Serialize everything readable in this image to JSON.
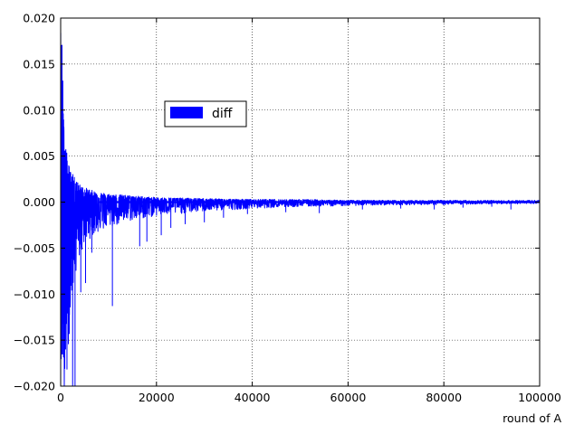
{
  "chart_data": {
    "type": "line",
    "title": "",
    "xlabel": "round of A",
    "ylabel": "",
    "xlim": [
      0,
      100000
    ],
    "ylim": [
      -0.02,
      0.02
    ],
    "grid": true,
    "legend_position": "upper-left",
    "x_ticks": [
      "0",
      "20000",
      "40000",
      "60000",
      "80000",
      "100000"
    ],
    "y_ticks": [
      "0.020",
      "0.015",
      "0.010",
      "0.005",
      "0.000",
      "−0.005",
      "−0.010",
      "−0.015",
      "−0.020"
    ],
    "x_tick_values": [
      0,
      20000,
      40000,
      60000,
      80000,
      100000
    ],
    "y_tick_values": [
      0.02,
      0.015,
      0.01,
      0.005,
      0.0,
      -0.005,
      -0.01,
      -0.015,
      -0.02
    ],
    "series": [
      {
        "name": "diff",
        "color": "#0000ff",
        "envelope_x": [
          0,
          300,
          600,
          1000,
          1500,
          2000,
          3000,
          4000,
          5000,
          7000,
          10000,
          15000,
          20000,
          30000,
          40000,
          50000,
          60000,
          70000,
          80000,
          90000,
          100000
        ],
        "envelope_upper": [
          0.02,
          0.0175,
          0.0095,
          0.0065,
          0.0045,
          0.0035,
          0.0026,
          0.0019,
          0.0016,
          0.0012,
          0.0009,
          0.0007,
          0.0005,
          0.0004,
          0.0003,
          0.0003,
          0.0002,
          0.0002,
          0.0002,
          0.0002,
          0.0002
        ],
        "envelope_lower": [
          -0.02,
          -0.02,
          -0.02,
          -0.02,
          -0.018,
          -0.012,
          -0.008,
          -0.006,
          -0.0045,
          -0.0035,
          -0.0028,
          -0.002,
          -0.0015,
          -0.001,
          -0.0007,
          -0.0005,
          -0.0004,
          -0.0003,
          -0.0003,
          -0.0002,
          -0.0002
        ],
        "spikes": [
          {
            "x": 2500,
            "y": -0.02
          },
          {
            "x": 3000,
            "y": -0.02
          },
          {
            "x": 4200,
            "y": -0.0098
          },
          {
            "x": 5200,
            "y": -0.0088
          },
          {
            "x": 6500,
            "y": -0.0055
          },
          {
            "x": 10800,
            "y": -0.0113
          },
          {
            "x": 16500,
            "y": -0.0048
          },
          {
            "x": 18000,
            "y": -0.0043
          },
          {
            "x": 21000,
            "y": -0.0036
          },
          {
            "x": 23000,
            "y": -0.0028
          },
          {
            "x": 26000,
            "y": -0.0024
          },
          {
            "x": 30000,
            "y": -0.0022
          },
          {
            "x": 34000,
            "y": -0.0017
          },
          {
            "x": 39000,
            "y": -0.0013
          },
          {
            "x": 47000,
            "y": -0.0011
          },
          {
            "x": 54000,
            "y": -0.0012
          },
          {
            "x": 63000,
            "y": -0.0008
          },
          {
            "x": 71000,
            "y": -0.0007
          },
          {
            "x": 78000,
            "y": -0.0008
          },
          {
            "x": 84000,
            "y": -0.0006
          },
          {
            "x": 90000,
            "y": -0.0005
          },
          {
            "x": 94000,
            "y": -0.0008
          }
        ]
      }
    ]
  }
}
